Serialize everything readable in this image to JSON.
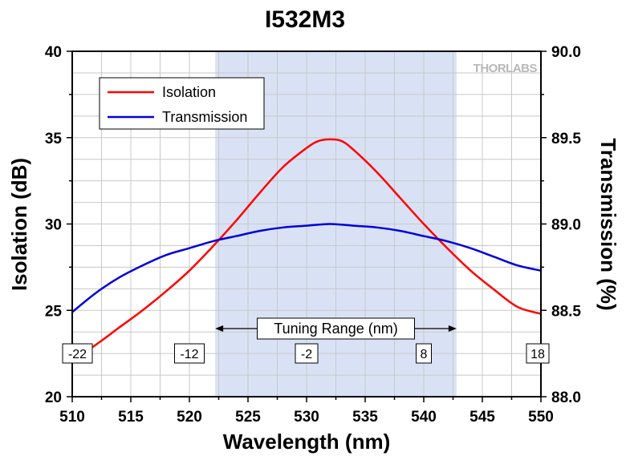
{
  "chart_data": {
    "type": "line",
    "title": "I532M3",
    "xlabel": "Wavelength (nm)",
    "ylabel_left": "Isolation (dB)",
    "ylabel_right": "Transmission (%)",
    "xlim": [
      510,
      550
    ],
    "ylim_left": [
      20,
      40
    ],
    "ylim_right": [
      88.0,
      90.0
    ],
    "x_ticks": [
      "510",
      "515",
      "520",
      "525",
      "530",
      "535",
      "540",
      "545",
      "550"
    ],
    "y_ticks_left": [
      "20",
      "25",
      "30",
      "35",
      "40"
    ],
    "y_ticks_right": [
      "88.0",
      "88.5",
      "89.0",
      "89.5",
      "90.0"
    ],
    "grid": true,
    "legend_position": "top-left",
    "series": [
      {
        "name": "Isolation",
        "axis": "left",
        "color": "#ff0000",
        "x": [
          510,
          512,
          514,
          516,
          518,
          520,
          522,
          524,
          526,
          528,
          530,
          531,
          532,
          533,
          534,
          536,
          538,
          540,
          542,
          544,
          546,
          548,
          550
        ],
        "values": [
          22.1,
          23.0,
          24.0,
          25.0,
          26.1,
          27.3,
          28.7,
          30.2,
          31.8,
          33.3,
          34.4,
          34.8,
          34.9,
          34.8,
          34.3,
          33.0,
          31.5,
          30.0,
          28.6,
          27.3,
          26.2,
          25.2,
          24.8
        ]
      },
      {
        "name": "Transmission",
        "axis": "right",
        "color": "#0000dd",
        "x": [
          510,
          512,
          514,
          516,
          518,
          520,
          522,
          524,
          526,
          528,
          530,
          532,
          534,
          536,
          538,
          540,
          542,
          544,
          546,
          548,
          550
        ],
        "values": [
          88.49,
          88.6,
          88.69,
          88.76,
          88.82,
          88.86,
          88.9,
          88.93,
          88.96,
          88.98,
          88.99,
          89.0,
          88.99,
          88.98,
          88.96,
          88.93,
          88.9,
          88.86,
          88.81,
          88.76,
          88.73
        ]
      }
    ],
    "tuning_range": {
      "label": "Tuning Range (nm)",
      "x_start": 522.2,
      "x_end": 542.8,
      "shade_color": "#d9e2f5"
    },
    "offset_labels": [
      {
        "text": "-22",
        "x": 510
      },
      {
        "text": "-12",
        "x": 520
      },
      {
        "text": "-2",
        "x": 530
      },
      {
        "text": "8",
        "x": 540
      },
      {
        "text": "18",
        "x": 550
      }
    ],
    "watermark": "THORLABS"
  }
}
